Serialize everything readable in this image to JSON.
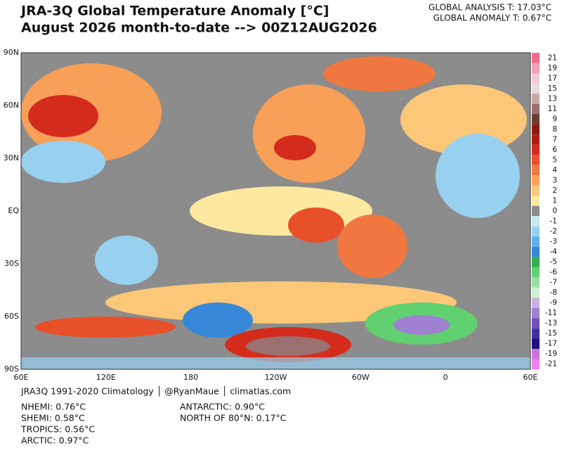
{
  "header": {
    "title": "JRA-3Q Global Temperature Anomaly [°C]",
    "subtitle": "August 2026 month-to-date --> 00Z12AUG2026",
    "global_analysis": "GLOBAL ANALYSIS T: 17.03°C",
    "global_anomaly": "GLOBAL ANOMALY T: 0.67°C"
  },
  "map": {
    "lat_labels": [
      "90N",
      "60N",
      "30N",
      "EQ",
      "30S",
      "60S",
      "90S"
    ],
    "lon_labels": [
      "60E",
      "120E",
      "180",
      "120W",
      "60W",
      "0",
      "60E"
    ]
  },
  "colorbar": {
    "ticks": [
      21,
      19,
      17,
      15,
      13,
      11,
      9,
      8,
      7,
      6,
      5,
      4,
      3,
      2,
      1,
      0,
      -1,
      -2,
      -3,
      -4,
      -5,
      -6,
      -7,
      -8,
      -9,
      -11,
      -13,
      -15,
      -17,
      -19,
      -21
    ],
    "colors": [
      "#f06c8c",
      "#f4a0b4",
      "#f8c8d4",
      "#ecdcdc",
      "#c8a8a8",
      "#9c7070",
      "#6e3c2c",
      "#8c1a10",
      "#b01c14",
      "#d42c1c",
      "#e8502a",
      "#f07840",
      "#f8a058",
      "#fcc878",
      "#fde8a0",
      "#8c8c8c",
      "#c8e8f8",
      "#98d0f0",
      "#60b0e8",
      "#3888d8",
      "#30b050",
      "#60d070",
      "#98e0a0",
      "#d0f0d0",
      "#c8b0e0",
      "#a080d0",
      "#7050b8",
      "#4030a0",
      "#201080",
      "#d070e0",
      "#f080f0"
    ]
  },
  "footer": {
    "credit": "JRA3Q 1991-2020 Climatology │ @RyanMaue │ climatlas.com",
    "stats": [
      "NHEMI: 0.76°C",
      "SHEMI: 0.58°C",
      "TROPICS: 0.56°C",
      "ARCTIC: 0.97°C",
      "ANTARCTIC: 0.90°C",
      "NORTH OF 80°N: 0.17°C"
    ]
  }
}
